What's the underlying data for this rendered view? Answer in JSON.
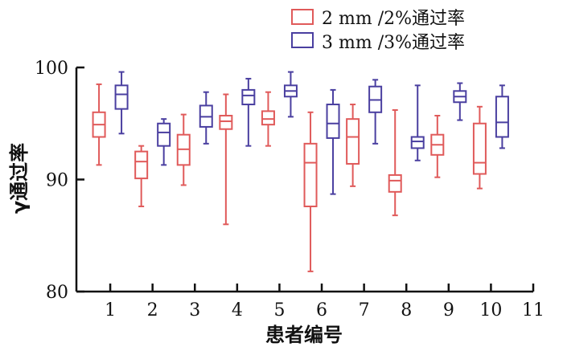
{
  "chart_data": {
    "type": "box",
    "xlabel": "患者编号",
    "ylabel": "γ通过率",
    "ylim": [
      80,
      100
    ],
    "xlim": [
      0.2,
      11
    ],
    "yticks": [
      80,
      90,
      100
    ],
    "xticks": [
      1,
      2,
      3,
      4,
      5,
      6,
      7,
      8,
      9,
      10,
      11
    ],
    "legend_position": "top-right",
    "series": [
      {
        "name": "2 mm /2%通过率",
        "color": "#e05a5a",
        "boxes": [
          {
            "patient": 1,
            "min": 91.3,
            "q1": 93.8,
            "median": 94.9,
            "q3": 96.0,
            "max": 98.5
          },
          {
            "patient": 2,
            "min": 87.6,
            "q1": 90.1,
            "median": 91.6,
            "q3": 92.5,
            "max": 93.0
          },
          {
            "patient": 3,
            "min": 89.5,
            "q1": 91.3,
            "median": 92.7,
            "q3": 94.0,
            "max": 95.8
          },
          {
            "patient": 4,
            "min": 86.0,
            "q1": 94.5,
            "median": 95.2,
            "q3": 95.7,
            "max": 97.6
          },
          {
            "patient": 5,
            "min": 93.0,
            "q1": 94.9,
            "median": 95.4,
            "q3": 96.1,
            "max": 97.8
          },
          {
            "patient": 6,
            "min": 81.8,
            "q1": 87.6,
            "median": 91.5,
            "q3": 93.2,
            "max": 96.0
          },
          {
            "patient": 7,
            "min": 89.4,
            "q1": 91.4,
            "median": 93.8,
            "q3": 95.4,
            "max": 96.7
          },
          {
            "patient": 8,
            "min": 86.8,
            "q1": 88.9,
            "median": 89.9,
            "q3": 90.4,
            "max": 96.2
          },
          {
            "patient": 9,
            "min": 90.2,
            "q1": 92.2,
            "median": 93.1,
            "q3": 94.0,
            "max": 95.7
          },
          {
            "patient": 10,
            "min": 89.2,
            "q1": 90.5,
            "median": 91.5,
            "q3": 95.0,
            "max": 96.5
          }
        ]
      },
      {
        "name": "3 mm /3%通过率",
        "color": "#4a3fa0",
        "boxes": [
          {
            "patient": 1,
            "min": 94.1,
            "q1": 96.3,
            "median": 97.6,
            "q3": 98.4,
            "max": 99.6
          },
          {
            "patient": 2,
            "min": 91.3,
            "q1": 93.0,
            "median": 94.2,
            "q3": 95.0,
            "max": 95.4
          },
          {
            "patient": 3,
            "min": 93.2,
            "q1": 94.7,
            "median": 95.6,
            "q3": 96.6,
            "max": 97.8
          },
          {
            "patient": 4,
            "min": 93.0,
            "q1": 96.7,
            "median": 97.5,
            "q3": 98.0,
            "max": 99.0
          },
          {
            "patient": 5,
            "min": 95.6,
            "q1": 97.4,
            "median": 97.9,
            "q3": 98.4,
            "max": 99.6
          },
          {
            "patient": 6,
            "min": 88.7,
            "q1": 93.7,
            "median": 95.0,
            "q3": 96.7,
            "max": 98.0
          },
          {
            "patient": 7,
            "min": 93.2,
            "q1": 96.0,
            "median": 97.1,
            "q3": 98.3,
            "max": 98.9
          },
          {
            "patient": 8,
            "min": 91.7,
            "q1": 92.8,
            "median": 93.4,
            "q3": 93.8,
            "max": 98.4
          },
          {
            "patient": 9,
            "min": 95.3,
            "q1": 96.9,
            "median": 97.4,
            "q3": 97.9,
            "max": 98.6
          },
          {
            "patient": 10,
            "min": 92.8,
            "q1": 93.8,
            "median": 95.1,
            "q3": 97.4,
            "max": 98.4
          }
        ]
      }
    ]
  }
}
